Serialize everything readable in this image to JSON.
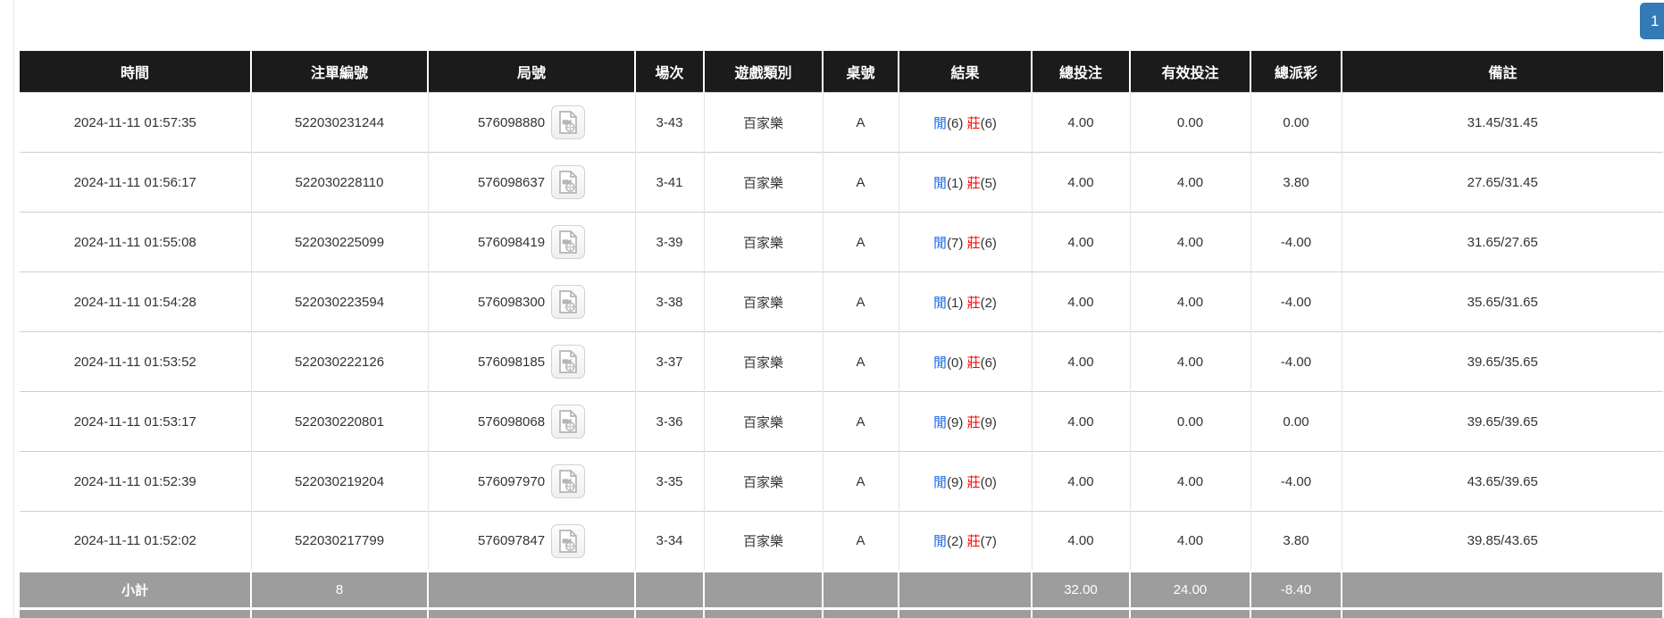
{
  "colors": {
    "header_bg": "#1b1b1b",
    "subtotal_bg": "#9d9d9d",
    "blue": "#1a66e8",
    "red": "#ff0000",
    "page_btn": "#337ab7"
  },
  "pagination": {
    "page": "1"
  },
  "table": {
    "columns": [
      {
        "key": "time",
        "label": "時間"
      },
      {
        "key": "bet_id",
        "label": "注單編號"
      },
      {
        "key": "round_id",
        "label": "局號"
      },
      {
        "key": "session",
        "label": "場次"
      },
      {
        "key": "game",
        "label": "遊戲類別"
      },
      {
        "key": "table_no",
        "label": "桌號"
      },
      {
        "key": "result",
        "label": "結果"
      },
      {
        "key": "total_bet",
        "label": "總投注"
      },
      {
        "key": "valid_bet",
        "label": "有效投注"
      },
      {
        "key": "payout",
        "label": "總派彩"
      },
      {
        "key": "remark",
        "label": "備註"
      }
    ],
    "rows": [
      {
        "time": "2024-11-11 01:57:35",
        "bet_id": "522030231244",
        "round_id": "576098880",
        "session": "3-43",
        "game": "百家樂",
        "table_no": "A",
        "player_label": "閒",
        "player_score": "(6)",
        "banker_label": "莊",
        "banker_score": "(6)",
        "total_bet": "4.00",
        "valid_bet": "0.00",
        "payout": "0.00",
        "remark": "31.45/31.45"
      },
      {
        "time": "2024-11-11 01:56:17",
        "bet_id": "522030228110",
        "round_id": "576098637",
        "session": "3-41",
        "game": "百家樂",
        "table_no": "A",
        "player_label": "閒",
        "player_score": "(1)",
        "banker_label": "莊",
        "banker_score": "(5)",
        "total_bet": "4.00",
        "valid_bet": "4.00",
        "payout": "3.80",
        "remark": "27.65/31.45"
      },
      {
        "time": "2024-11-11 01:55:08",
        "bet_id": "522030225099",
        "round_id": "576098419",
        "session": "3-39",
        "game": "百家樂",
        "table_no": "A",
        "player_label": "閒",
        "player_score": "(7)",
        "banker_label": "莊",
        "banker_score": "(6)",
        "total_bet": "4.00",
        "valid_bet": "4.00",
        "payout": "-4.00",
        "remark": "31.65/27.65"
      },
      {
        "time": "2024-11-11 01:54:28",
        "bet_id": "522030223594",
        "round_id": "576098300",
        "session": "3-38",
        "game": "百家樂",
        "table_no": "A",
        "player_label": "閒",
        "player_score": "(1)",
        "banker_label": "莊",
        "banker_score": "(2)",
        "total_bet": "4.00",
        "valid_bet": "4.00",
        "payout": "-4.00",
        "remark": "35.65/31.65"
      },
      {
        "time": "2024-11-11 01:53:52",
        "bet_id": "522030222126",
        "round_id": "576098185",
        "session": "3-37",
        "game": "百家樂",
        "table_no": "A",
        "player_label": "閒",
        "player_score": "(0)",
        "banker_label": "莊",
        "banker_score": "(6)",
        "total_bet": "4.00",
        "valid_bet": "4.00",
        "payout": "-4.00",
        "remark": "39.65/35.65"
      },
      {
        "time": "2024-11-11 01:53:17",
        "bet_id": "522030220801",
        "round_id": "576098068",
        "session": "3-36",
        "game": "百家樂",
        "table_no": "A",
        "player_label": "閒",
        "player_score": "(9)",
        "banker_label": "莊",
        "banker_score": "(9)",
        "total_bet": "4.00",
        "valid_bet": "0.00",
        "payout": "0.00",
        "remark": "39.65/39.65"
      },
      {
        "time": "2024-11-11 01:52:39",
        "bet_id": "522030219204",
        "round_id": "576097970",
        "session": "3-35",
        "game": "百家樂",
        "table_no": "A",
        "player_label": "閒",
        "player_score": "(9)",
        "banker_label": "莊",
        "banker_score": "(0)",
        "total_bet": "4.00",
        "valid_bet": "4.00",
        "payout": "-4.00",
        "remark": "43.65/39.65"
      },
      {
        "time": "2024-11-11 01:52:02",
        "bet_id": "522030217799",
        "round_id": "576097847",
        "session": "3-34",
        "game": "百家樂",
        "table_no": "A",
        "player_label": "閒",
        "player_score": "(2)",
        "banker_label": "莊",
        "banker_score": "(7)",
        "total_bet": "4.00",
        "valid_bet": "4.00",
        "payout": "3.80",
        "remark": "39.85/43.65"
      }
    ],
    "subtotal": {
      "label": "小計",
      "count": "8",
      "total_bet": "32.00",
      "valid_bet": "24.00",
      "payout": "-8.40"
    },
    "video_icon_name": "video-replay-icon"
  }
}
